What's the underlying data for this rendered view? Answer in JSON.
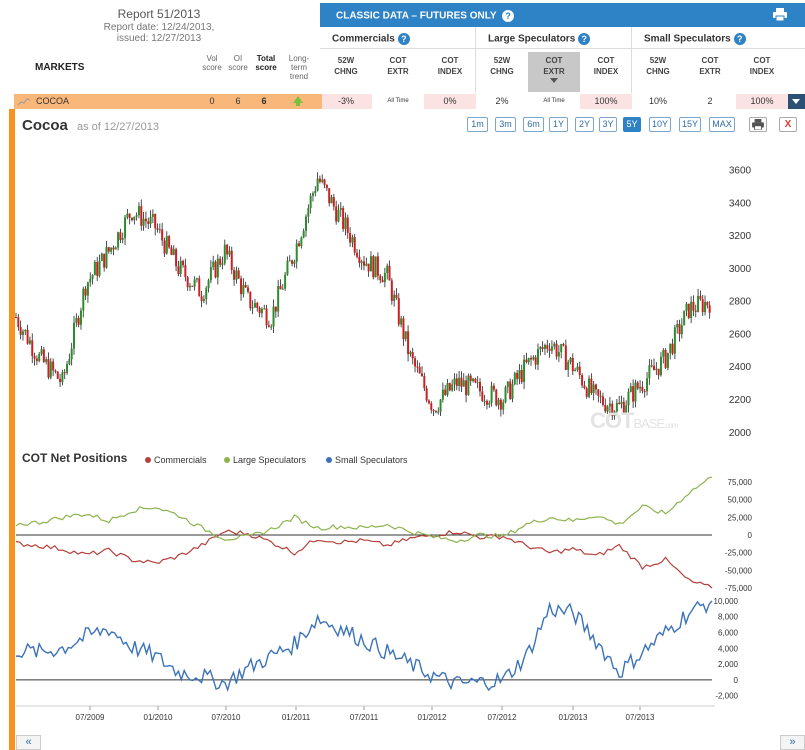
{
  "report": {
    "title": "Report 51/2013",
    "date": "Report date: 12/24/2013,",
    "issued": "issued: 12/27/2013"
  },
  "table_header": {
    "markets": "MARKETS",
    "vol_score": [
      "Vol",
      "score"
    ],
    "oi_score": [
      "OI",
      "score"
    ],
    "total_score": [
      "Total",
      "score"
    ],
    "long_term_trend": [
      "Long-",
      "term",
      "trend"
    ]
  },
  "classic": {
    "title": "CLASSIC DATA – FUTURES ONLY",
    "groups": [
      "Commercials",
      "Large Speculators",
      "Small Speculators"
    ],
    "columns": [
      [
        "52W",
        "CHNG"
      ],
      [
        "COT",
        "EXTR"
      ],
      [
        "COT",
        "INDEX"
      ],
      [
        "52W",
        "CHNG"
      ],
      [
        "COT",
        "EXTR"
      ],
      [
        "COT",
        "INDEX"
      ],
      [
        "52W",
        "CHNG"
      ],
      [
        "COT",
        "EXTR"
      ],
      [
        "COT",
        "INDEX"
      ]
    ]
  },
  "market_row": {
    "name": "COCOA",
    "vol": "0",
    "oi": "6",
    "total": "6",
    "trend": "up",
    "cells": [
      "-3%",
      "All Time",
      "0%",
      "2%",
      "All Time",
      "100%",
      "10%",
      "2",
      "100%"
    ]
  },
  "chart_header": {
    "title": "Cocoa",
    "asof": "as of 12/27/2013",
    "ranges": [
      "1m",
      "3m",
      "6m",
      "1Y",
      "2Y",
      "3Y",
      "5Y",
      "10Y",
      "15Y",
      "MAX"
    ],
    "active_range": "5Y",
    "close": "X"
  },
  "cot_panel": {
    "title": "COT Net Positions",
    "legend": [
      {
        "name": "Commercials",
        "color": "#b5403a"
      },
      {
        "name": "Large Speculators",
        "color": "#8db34e"
      },
      {
        "name": "Small Speculators",
        "color": "#3b73b9"
      }
    ]
  },
  "watermark": {
    "main": "COT",
    "sub": "BASE",
    "dom": ".com"
  },
  "nav": {
    "prev": "«",
    "next": "»"
  },
  "colors": {
    "accent": "#f7921e",
    "brand": "#2e82c6",
    "up": "#2e8b2e",
    "down": "#cc2020",
    "commercials": "#b5403a",
    "large": "#8db34e",
    "small": "#3b73b9"
  },
  "chart_data": [
    {
      "type": "candlestick",
      "title": "Cocoa",
      "ylim": [
        1950,
        3780
      ],
      "yticks": [
        2000,
        2200,
        2400,
        2600,
        2800,
        3000,
        3200,
        3400,
        3600
      ],
      "x_dates": [
        "2009-01",
        "2009-03",
        "2009-05",
        "2009-07",
        "2009-09",
        "2009-11",
        "2010-01",
        "2010-03",
        "2010-05",
        "2010-07",
        "2010-09",
        "2010-11",
        "2011-01",
        "2011-03",
        "2011-05",
        "2011-07",
        "2011-09",
        "2011-11",
        "2012-01",
        "2012-03",
        "2012-05",
        "2012-07",
        "2012-09",
        "2012-11",
        "2013-01",
        "2013-03",
        "2013-05",
        "2013-07",
        "2013-09",
        "2013-11",
        "2013-12"
      ],
      "close": [
        2700,
        2450,
        2300,
        2900,
        3100,
        3350,
        3250,
        3000,
        2850,
        3100,
        2800,
        2700,
        3100,
        3550,
        3300,
        3050,
        2950,
        2450,
        2150,
        2300,
        2250,
        2200,
        2400,
        2550,
        2400,
        2200,
        2150,
        2300,
        2450,
        2750,
        2800
      ]
    },
    {
      "type": "line",
      "title": "COT Net Positions",
      "ylim": [
        -92000,
        92000
      ],
      "yticks": [
        -75000,
        -50000,
        -25000,
        0,
        25000,
        50000,
        75000
      ],
      "x_dates": [
        "2009-01",
        "2009-03",
        "2009-05",
        "2009-07",
        "2009-09",
        "2009-11",
        "2010-01",
        "2010-03",
        "2010-05",
        "2010-07",
        "2010-09",
        "2010-11",
        "2011-01",
        "2011-03",
        "2011-05",
        "2011-07",
        "2011-09",
        "2011-11",
        "2012-01",
        "2012-03",
        "2012-05",
        "2012-07",
        "2012-09",
        "2012-11",
        "2013-01",
        "2013-03",
        "2013-05",
        "2013-07",
        "2013-09",
        "2013-11",
        "2013-12"
      ],
      "series": [
        {
          "name": "Commercials",
          "values": [
            -12000,
            -15000,
            -20000,
            -28000,
            -22000,
            -35000,
            -40000,
            -30000,
            -15000,
            5000,
            2000,
            -10000,
            -25000,
            -5000,
            -10000,
            -8000,
            -15000,
            -5000,
            0,
            5000,
            -3000,
            -2000,
            -15000,
            -25000,
            -20000,
            -30000,
            -15000,
            -45000,
            -35000,
            -65000,
            -75000
          ]
        },
        {
          "name": "Large Speculators",
          "values": [
            15000,
            18000,
            25000,
            30000,
            20000,
            35000,
            40000,
            28000,
            10000,
            -5000,
            -3000,
            8000,
            25000,
            10000,
            12000,
            10000,
            15000,
            5000,
            -3000,
            -8000,
            0,
            -2000,
            15000,
            25000,
            20000,
            28000,
            15000,
            40000,
            30000,
            60000,
            82000
          ]
        }
      ]
    },
    {
      "type": "line",
      "title": "",
      "ylim": [
        -2800,
        10500
      ],
      "yticks": [
        -2000,
        0,
        2000,
        4000,
        6000,
        8000,
        10000
      ],
      "x_dates": [
        "2009-01",
        "2009-03",
        "2009-05",
        "2009-07",
        "2009-09",
        "2009-11",
        "2010-01",
        "2010-03",
        "2010-05",
        "2010-07",
        "2010-09",
        "2010-11",
        "2011-01",
        "2011-03",
        "2011-05",
        "2011-07",
        "2011-09",
        "2011-11",
        "2012-01",
        "2012-03",
        "2012-05",
        "2012-07",
        "2012-09",
        "2012-11",
        "2013-01",
        "2013-03",
        "2013-05",
        "2013-07",
        "2013-09",
        "2013-11",
        "2013-12"
      ],
      "series": [
        {
          "name": "Small Speculators",
          "values": [
            3800,
            3500,
            4000,
            5500,
            6500,
            4200,
            3000,
            1000,
            500,
            -500,
            1500,
            3000,
            4500,
            7800,
            6500,
            5000,
            3500,
            2000,
            500,
            -500,
            -300,
            0,
            3000,
            9000,
            8500,
            5000,
            1000,
            3500,
            6000,
            8500,
            10000
          ]
        }
      ]
    }
  ],
  "x_axis": {
    "ticks": [
      "07/2009",
      "01/2010",
      "07/2010",
      "01/2011",
      "07/2011",
      "01/2012",
      "07/2012",
      "01/2013",
      "07/2013"
    ]
  }
}
